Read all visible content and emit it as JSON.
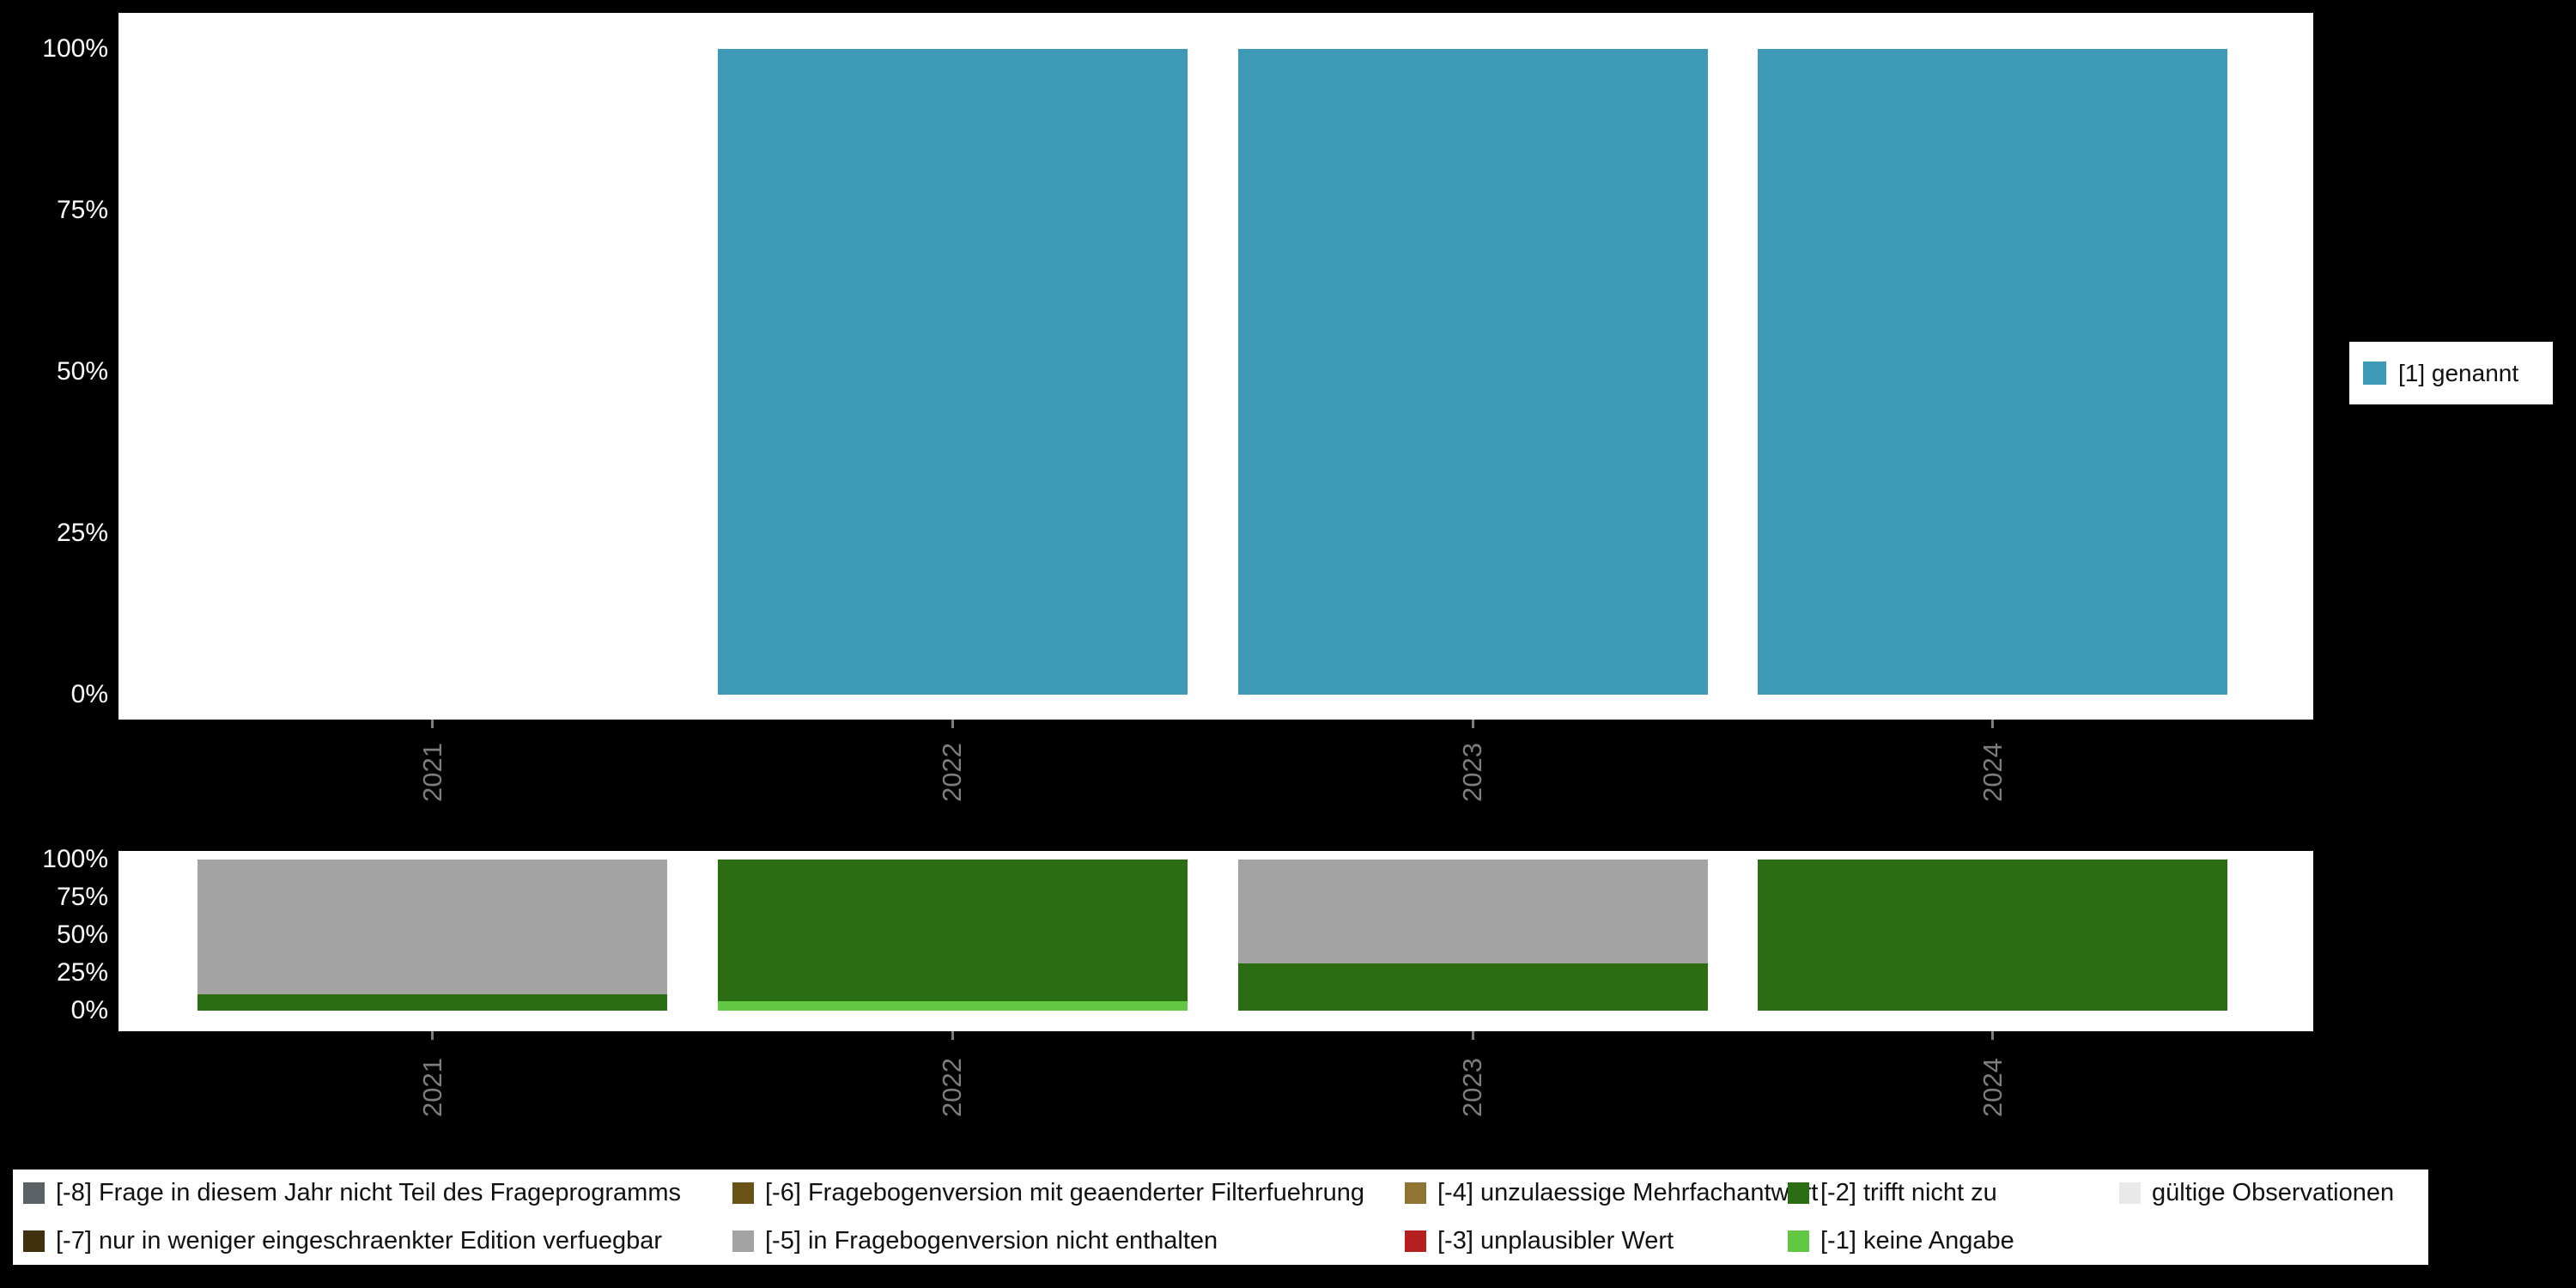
{
  "background": "#000000",
  "axes": {
    "y_tick_labels": [
      "100%",
      "75%",
      "50%",
      "25%",
      "0%"
    ],
    "x_tick_labels": [
      "2021",
      "2022",
      "2023",
      "2024"
    ]
  },
  "legend_right": {
    "items": [
      {
        "label": "[1] genannt",
        "color": "#3d99b5"
      }
    ]
  },
  "legend_bottom": {
    "items": [
      {
        "label": "[-8] Frage in diesem Jahr nicht Teil des Frageprogramms",
        "color": "#5b6265"
      },
      {
        "label": "[-7] nur in weniger eingeschraenkter Edition verfuegbar",
        "color": "#40300e"
      },
      {
        "label": "[-6] Fragebogenversion mit geaenderter Filterfuehrung",
        "color": "#6a5214"
      },
      {
        "label": "[-5] in Fragebogenversion nicht enthalten",
        "color": "#a3a3a3"
      },
      {
        "label": "[-4] unzulaessige Mehrfachantwort",
        "color": "#8f7434"
      },
      {
        "label": "[-3] unplausibler Wert",
        "color": "#b41f1f"
      },
      {
        "label": "[-2] trifft nicht zu",
        "color": "#2a6d12"
      },
      {
        "label": "[-1] keine Angabe",
        "color": "#62c742"
      },
      {
        "label": "gültige Observationen",
        "color": "#e9e9e9"
      }
    ]
  },
  "chart_data": [
    {
      "type": "bar",
      "title": "",
      "xlabel": "",
      "ylabel": "",
      "categories": [
        "2021",
        "2022",
        "2023",
        "2024"
      ],
      "series": [
        {
          "name": "[1] genannt",
          "color": "#3d99b5",
          "values": [
            null,
            100,
            100,
            100
          ]
        }
      ],
      "stacked": false,
      "ylim": [
        0,
        100
      ],
      "ytick_labels": [
        "100%",
        "75%",
        "50%",
        "25%",
        "0%"
      ],
      "grid": false,
      "legend_position": "right"
    },
    {
      "type": "bar",
      "title": "",
      "xlabel": "",
      "ylabel": "",
      "categories": [
        "2021",
        "2022",
        "2023",
        "2024"
      ],
      "series": [
        {
          "name": "[-1] keine Angabe",
          "color": "#62c742",
          "values": [
            0,
            6,
            0,
            0
          ]
        },
        {
          "name": "[-2] trifft nicht zu",
          "color": "#2a6d12",
          "values": [
            11,
            94,
            31,
            100
          ]
        },
        {
          "name": "[-5] in Fragebogenversion nicht enthalten",
          "color": "#a3a3a3",
          "values": [
            89,
            0,
            69,
            0
          ]
        }
      ],
      "stacked": true,
      "ylim": [
        0,
        100
      ],
      "ytick_labels": [
        "100%",
        "75%",
        "50%",
        "25%",
        "0%"
      ],
      "grid": false,
      "legend_position": "bottom"
    }
  ]
}
